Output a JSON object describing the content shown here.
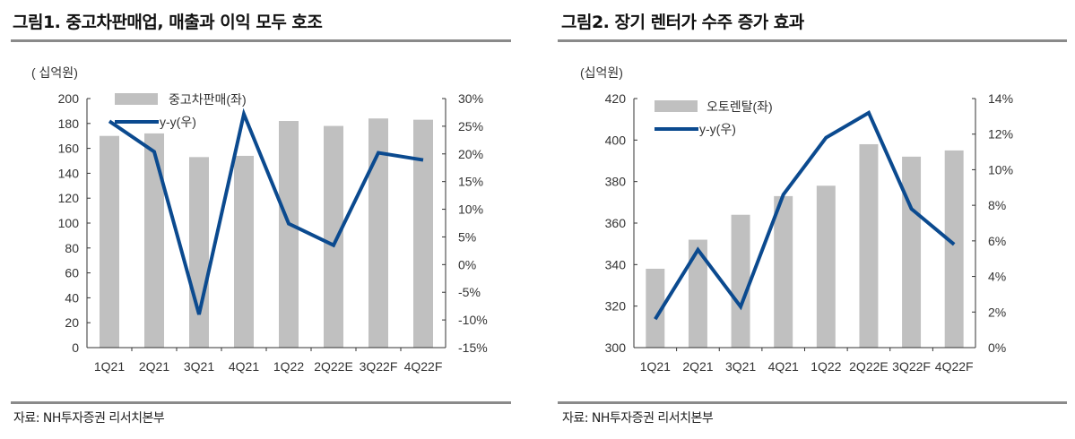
{
  "panels": [
    {
      "title": "그림1. 중고차판매업, 매출과 이익 모두 호조",
      "source": "자료: NH투자증권 리서치본부"
    },
    {
      "title": "그림2. 장기 렌터가 수주 증가 효과",
      "source": "자료: NH투자증권 리서치본부"
    }
  ],
  "colors": {
    "bar": "#c0c0c0",
    "line": "#0b4a8f"
  },
  "chart_data": [
    {
      "type": "bar+line",
      "unit_label": "( 십억원)",
      "categories": [
        "1Q21",
        "2Q21",
        "3Q21",
        "4Q21",
        "1Q22",
        "2Q22E",
        "3Q22F",
        "4Q22F"
      ],
      "series": [
        {
          "name": "중고차판매(좌)",
          "type": "bar",
          "axis": "left",
          "values": [
            170,
            172,
            153,
            154,
            182,
            178,
            184,
            183
          ]
        },
        {
          "name": "y-y(우)",
          "type": "line",
          "axis": "right",
          "values": [
            25.9,
            20.4,
            -9.0,
            27.2,
            7.4,
            3.5,
            20.2,
            18.9
          ]
        }
      ],
      "left_axis": {
        "ylim": [
          0,
          200
        ],
        "ticks": [
          "0",
          "20",
          "40",
          "60",
          "80",
          "100",
          "120",
          "140",
          "160",
          "180",
          "200"
        ]
      },
      "right_axis": {
        "ylim": [
          -15,
          30
        ],
        "ticks": [
          "-15%",
          "-10%",
          "-5%",
          "0%",
          "5%",
          "10%",
          "15%",
          "20%",
          "25%",
          "30%"
        ]
      },
      "legend": "top-left",
      "grid": false
    },
    {
      "type": "bar+line",
      "unit_label": "(십억원)",
      "categories": [
        "1Q21",
        "2Q21",
        "3Q21",
        "4Q21",
        "1Q22",
        "2Q22E",
        "3Q22F",
        "4Q22F"
      ],
      "series": [
        {
          "name": "오토렌탈(좌)",
          "type": "bar",
          "axis": "left",
          "values": [
            338,
            352,
            364,
            373,
            378,
            398,
            392,
            395
          ]
        },
        {
          "name": "y-y(우)",
          "type": "line",
          "axis": "right",
          "values": [
            1.6,
            5.5,
            2.3,
            8.6,
            11.8,
            13.2,
            7.8,
            5.8
          ]
        }
      ],
      "left_axis": {
        "ylim": [
          300,
          420
        ],
        "ticks": [
          "300",
          "320",
          "340",
          "360",
          "380",
          "400",
          "420"
        ]
      },
      "right_axis": {
        "ylim": [
          0,
          14
        ],
        "ticks": [
          "0%",
          "2%",
          "4%",
          "6%",
          "8%",
          "10%",
          "12%",
          "14%"
        ]
      },
      "legend": "top-left",
      "grid": false
    }
  ]
}
